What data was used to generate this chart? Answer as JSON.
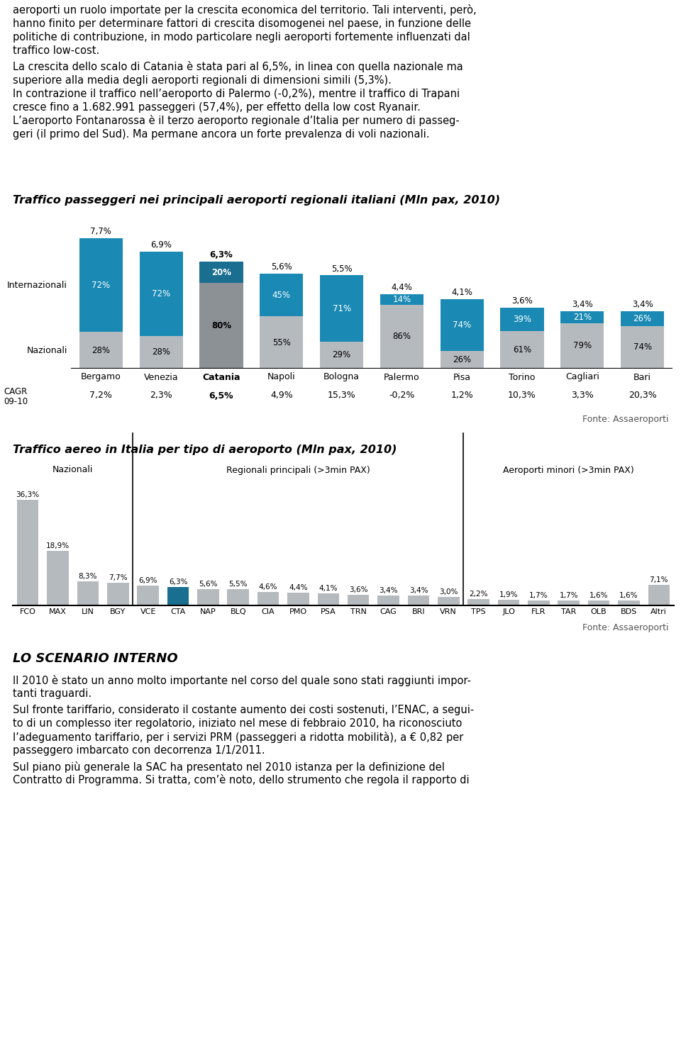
{
  "text_block_para1": [
    "aeroporti un ruolo importate per la crescita economica del territorio. Tali interventi, però,",
    "hanno finito per determinare fattori di crescita disomogenei nel paese, in funzione delle",
    "politiche di contribuzione, in modo particolare negli aeroporti fortemente influenzati dal",
    "traffico low-cost."
  ],
  "text_block_para2": [
    "La crescita dello scalo di Catania è stata pari al 6,5%, in linea con quella nazionale ma",
    "superiore alla media degli aeroporti regionali di dimensioni simili (5,3%)."
  ],
  "text_block_para3": [
    "In contrazione il traffico nell’aeroporto di Palermo (-0,2%), mentre il traffico di Trapani",
    "cresce fino a 1.682.991 passeggeri (57,4%), per effetto della low cost Ryanair.",
    "L’aeroporto Fontanarossa è il terzo aeroporto regionale d’Italia per numero di passeg-",
    "geri (il primo del Sud). Ma permane ancora un forte prevalenza di voli nazionali."
  ],
  "chart1_title": "Traffico passeggeri nei principali aeroporti regionali italiani (Mln pax, 2010)",
  "chart1_airports": [
    "Bergamo",
    "Venezia",
    "Catania",
    "Napoli",
    "Bologna",
    "Palermo",
    "Pisa",
    "Torino",
    "Cagliari",
    "Bari"
  ],
  "chart1_total_labels": [
    "7,7%",
    "6,9%",
    "6,3%",
    "5,6%",
    "5,5%",
    "4,4%",
    "4,1%",
    "3,6%",
    "3,4%",
    "3,4%"
  ],
  "chart1_total": [
    7.7,
    6.9,
    6.3,
    5.6,
    5.5,
    4.4,
    4.1,
    3.6,
    3.4,
    3.4
  ],
  "chart1_intl_pct": [
    72,
    72,
    20,
    45,
    71,
    14,
    74,
    39,
    21,
    26
  ],
  "chart1_natl_pct": [
    28,
    28,
    80,
    55,
    29,
    86,
    26,
    61,
    79,
    74
  ],
  "chart1_cagr": [
    "7,2%",
    "2,3%",
    "6,5%",
    "4,9%",
    "15,3%",
    "-0,2%",
    "1,2%",
    "10,3%",
    "3,3%",
    "20,3%"
  ],
  "chart1_highlight": 2,
  "chart1_color_intl": "#1a8ab5",
  "chart1_color_natl": "#b5babe",
  "chart1_color_intl_hl": "#1a6e90",
  "chart1_color_natl_hl": "#8c9196",
  "chart1_fonte": "Fonte: Assaeroporti",
  "chart2_title": "Traffico aereo in Italia per tipo di aeroporto (Mln pax, 2010)",
  "chart2_labels": [
    "FCO",
    "MAX",
    "LIN",
    "BGY",
    "VCE",
    "CTA",
    "NAP",
    "BLQ",
    "CIA",
    "PMO",
    "PSA",
    "TRN",
    "CAG",
    "BRI",
    "VRN",
    "TPS",
    "JLO",
    "FLR",
    "TAR",
    "OLB",
    "BDS",
    "Altri"
  ],
  "chart2_values": [
    36.3,
    18.9,
    8.3,
    7.7,
    6.9,
    6.3,
    5.6,
    5.5,
    4.6,
    4.4,
    4.1,
    3.6,
    3.4,
    3.4,
    3.0,
    2.2,
    1.9,
    1.7,
    1.7,
    1.6,
    1.6,
    7.1
  ],
  "chart2_val_labels": [
    "36,3%",
    "18,9%",
    "8,3%",
    "7,7%",
    "6,9%",
    "6,3%",
    "5,6%",
    "5,5%",
    "4,6%",
    "4,4%",
    "4,1%",
    "3,6%",
    "3,4%",
    "3,4%",
    "3,0%",
    "2,2%",
    "1,9%",
    "1,7%",
    "1,7%",
    "1,6%",
    "1,6%",
    "7,1%"
  ],
  "chart2_highlight": 5,
  "chart2_color_normal": "#b5babe",
  "chart2_color_highlight": "#1a6e90",
  "chart2_group_labels": [
    "Nazionali",
    "Regionali principali (>3min PAX)",
    "Aeroporti minori (>3min PAX)"
  ],
  "chart2_group_ranges": [
    [
      0,
      3
    ],
    [
      4,
      14
    ],
    [
      15,
      21
    ]
  ],
  "chart2_group_dividers": [
    3.5,
    14.5
  ],
  "chart2_fonte": "Fonte: Assaeroporti",
  "bottom_title": "LO SCENARIO INTERNO",
  "bottom_para1": [
    "Il 2010 è stato un anno molto importante nel corso del quale sono stati raggiunti impor-",
    "tanti traguardi."
  ],
  "bottom_para2": [
    "Sul fronte tariffario, considerato il costante aumento dei costi sostenuti, l’ENAC, a segui-",
    "to di un complesso iter regolatorio, iniziato nel mese di febbraio 2010, ha riconosciuto",
    "l’adeguamento tariffario, per i servizi PRM (passeggeri a ridotta mobilità), a € 0,82 per",
    "passeggero imbarcato con decorrenza 1/1/2011."
  ],
  "bottom_para3": [
    "Sul piano più generale la SAC ha presentato nel 2010 istanza per la definizione del",
    "Contratto di Programma. Si tratta, com’è noto, dello strumento che regola il rapporto di"
  ]
}
